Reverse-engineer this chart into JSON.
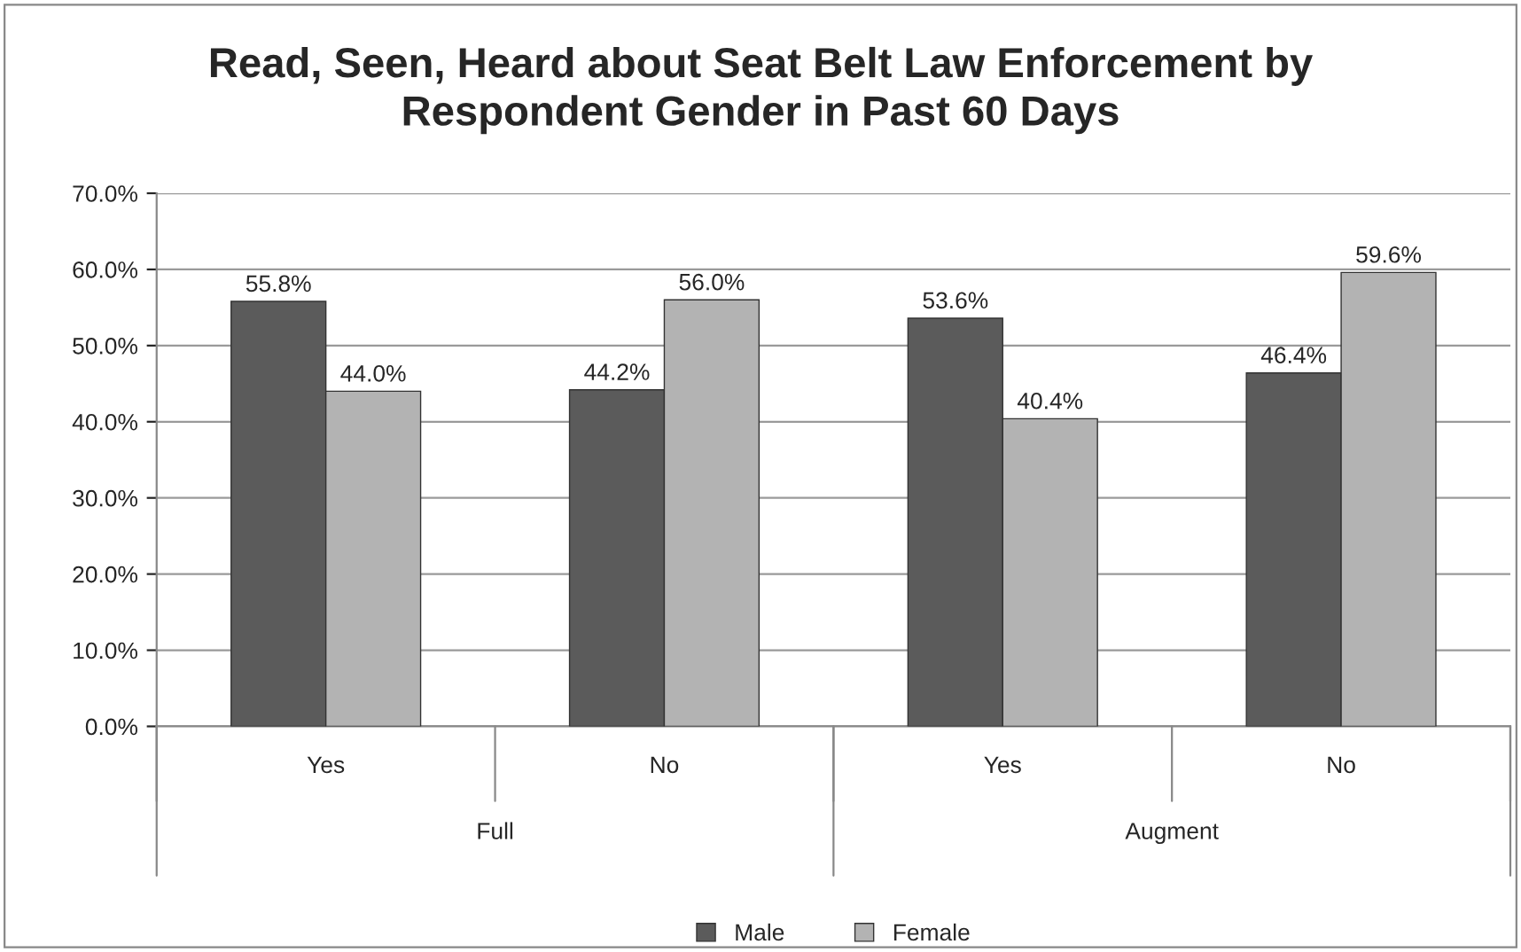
{
  "chart_data": {
    "type": "bar",
    "title": "Read, Seen, Heard about Seat Belt Law Enforcement by\nRespondent Gender in Past 60 Days",
    "categories": [
      "Yes",
      "No",
      "Yes",
      "No"
    ],
    "series": [
      {
        "name": "Male",
        "color": "#5b5b5b",
        "values": [
          55.8,
          44.2,
          53.6,
          46.4
        ],
        "value_labels": [
          "55.8%",
          "44.2%",
          "53.6%",
          "46.4%"
        ]
      },
      {
        "name": "Female",
        "color": "#b3b3b3",
        "values": [
          44.0,
          56.0,
          40.4,
          59.6
        ],
        "value_labels": [
          "44.0%",
          "56.0%",
          "40.4%",
          "59.6%"
        ]
      }
    ],
    "annotations": [
      "Full",
      "Augment"
    ],
    "ylim": [
      0,
      70
    ],
    "yticks": [
      {
        "value": 0,
        "label": "0.0%"
      },
      {
        "value": 10,
        "label": "10.0%"
      },
      {
        "value": 20,
        "label": "20.0%"
      },
      {
        "value": 30,
        "label": "30.0%"
      },
      {
        "value": 40,
        "label": "40.0%"
      },
      {
        "value": 50,
        "label": "50.0%"
      },
      {
        "value": 60,
        "label": "60.0%"
      },
      {
        "value": 70,
        "label": "70.0%"
      }
    ],
    "grid": "y",
    "legend": "bottom"
  }
}
